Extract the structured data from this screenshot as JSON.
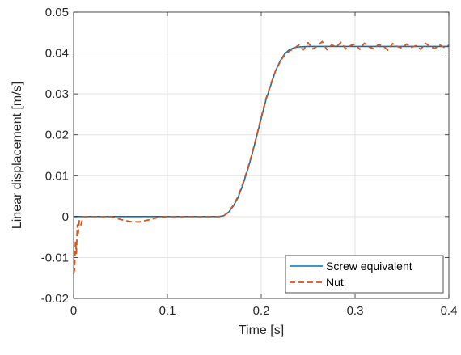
{
  "chart_data": {
    "type": "line",
    "title": "",
    "xlabel": "Time [s]",
    "ylabel": "Linear displacement [m/s]",
    "xlim": [
      0,
      0.4
    ],
    "ylim": [
      -0.02,
      0.05
    ],
    "xticks": [
      0,
      0.1,
      0.2,
      0.3,
      0.4
    ],
    "xtick_labels": [
      "0",
      "0.1",
      "0.2",
      "0.3",
      "0.4"
    ],
    "yticks": [
      -0.02,
      -0.01,
      0,
      0.01,
      0.02,
      0.03,
      0.04,
      0.05
    ],
    "ytick_labels": [
      "-0.02",
      "-0.01",
      "0",
      "0.01",
      "0.02",
      "0.03",
      "0.04",
      "0.05"
    ],
    "grid": true,
    "legend_position": "bottom-right",
    "series": [
      {
        "name": "Screw equivalent",
        "color": "#0072BD",
        "dash": "solid",
        "x": [
          0,
          0.155,
          0.16,
          0.165,
          0.17,
          0.175,
          0.18,
          0.185,
          0.19,
          0.195,
          0.2,
          0.205,
          0.21,
          0.215,
          0.22,
          0.225,
          0.23,
          0.235,
          0.24,
          0.25,
          0.3,
          0.35,
          0.4
        ],
        "y": [
          0,
          0,
          0.0002,
          0.001,
          0.0025,
          0.0045,
          0.0075,
          0.011,
          0.015,
          0.0195,
          0.024,
          0.0285,
          0.032,
          0.0355,
          0.038,
          0.0398,
          0.0408,
          0.0413,
          0.0415,
          0.0416,
          0.0416,
          0.0416,
          0.0416
        ]
      },
      {
        "name": "Nut",
        "color": "#D95319",
        "dash": "dashed",
        "x": [
          0,
          0.001,
          0.002,
          0.003,
          0.004,
          0.005,
          0.006,
          0.008,
          0.01,
          0.02,
          0.04,
          0.05,
          0.06,
          0.07,
          0.08,
          0.09,
          0.1,
          0.155,
          0.16,
          0.165,
          0.17,
          0.175,
          0.18,
          0.185,
          0.19,
          0.195,
          0.2,
          0.205,
          0.21,
          0.215,
          0.22,
          0.225,
          0.23,
          0.235,
          0.24,
          0.245,
          0.25,
          0.255,
          0.26,
          0.265,
          0.27,
          0.275,
          0.28,
          0.285,
          0.29,
          0.295,
          0.3,
          0.305,
          0.31,
          0.315,
          0.32,
          0.325,
          0.33,
          0.335,
          0.34,
          0.345,
          0.35,
          0.355,
          0.36,
          0.365,
          0.37,
          0.375,
          0.38,
          0.385,
          0.39,
          0.395,
          0.4
        ],
        "y": [
          -0.014,
          -0.013,
          -0.006,
          -0.009,
          -0.002,
          -0.004,
          -0.001,
          -0.002,
          0,
          0,
          0,
          -0.0007,
          -0.0012,
          -0.0013,
          -0.0008,
          -0.0002,
          0,
          0,
          0.0002,
          0.0011,
          0.0027,
          0.0048,
          0.0078,
          0.0113,
          0.0152,
          0.0197,
          0.0243,
          0.0288,
          0.0323,
          0.0355,
          0.0378,
          0.0396,
          0.0405,
          0.0411,
          0.042,
          0.0408,
          0.0425,
          0.041,
          0.0417,
          0.0428,
          0.0408,
          0.042,
          0.0415,
          0.0426,
          0.041,
          0.0418,
          0.0422,
          0.0409,
          0.0424,
          0.0415,
          0.041,
          0.0421,
          0.0417,
          0.0407,
          0.0423,
          0.0416,
          0.0412,
          0.0422,
          0.0414,
          0.0418,
          0.0409,
          0.0424,
          0.0416,
          0.0411,
          0.042,
          0.0414,
          0.0419
        ]
      }
    ]
  }
}
